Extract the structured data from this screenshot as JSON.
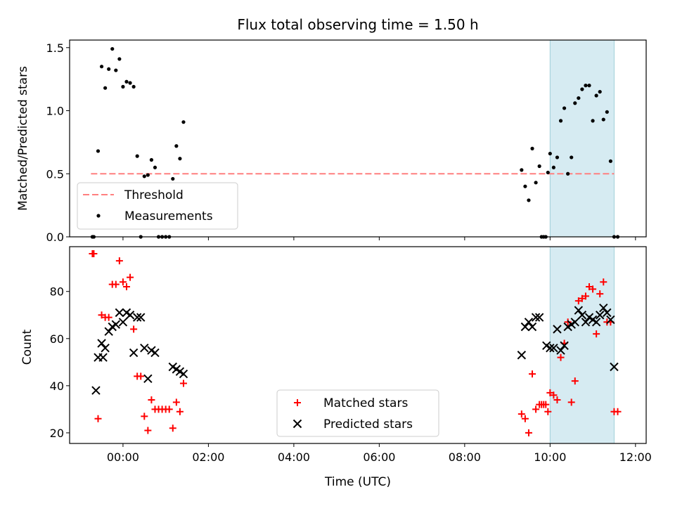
{
  "chart_data": [
    {
      "type": "scatter",
      "title": "Flux total observing time = 1.50 h",
      "ylabel": "Matched/Predicted stars",
      "xlabel": "",
      "xlim": [
        "-01:15",
        "12:15"
      ],
      "ylim": [
        0,
        1.56
      ],
      "yticks": [
        "0.0",
        "0.5",
        "1.0",
        "1.5"
      ],
      "shaded_interval": [
        "10:00",
        "11:30"
      ],
      "legend_position": "lower-left",
      "series": [
        {
          "name": "Threshold",
          "kind": "dashed-line",
          "color": "#ff7f7f",
          "x": [
            "-00:45",
            "11:30"
          ],
          "y": [
            0.5,
            0.5
          ]
        },
        {
          "name": "Measurements",
          "kind": "points",
          "color": "#000000",
          "x": [
            "-00:43",
            "-00:41",
            "-00:35",
            "-00:30",
            "-00:25",
            "-00:20",
            "-00:15",
            "-00:10",
            "-00:05",
            "00:00",
            "00:05",
            "00:10",
            "00:15",
            "00:20",
            "00:25",
            "00:30",
            "00:35",
            "00:40",
            "00:45",
            "00:50",
            "00:55",
            "01:00",
            "01:05",
            "01:10",
            "01:15",
            "01:20",
            "01:25",
            "09:20",
            "09:25",
            "09:30",
            "09:35",
            "09:40",
            "09:45",
            "09:48",
            "09:51",
            "09:54",
            "09:57",
            "10:00",
            "10:05",
            "10:10",
            "10:15",
            "10:20",
            "10:25",
            "10:30",
            "10:35",
            "10:40",
            "10:45",
            "10:50",
            "10:55",
            "11:00",
            "11:05",
            "11:10",
            "11:15",
            "11:20",
            "11:25",
            "11:30",
            "11:35"
          ],
          "y": [
            0.0,
            0.0,
            0.68,
            1.35,
            1.18,
            1.33,
            1.49,
            1.32,
            1.41,
            1.19,
            1.23,
            1.22,
            1.19,
            0.64,
            0.0,
            0.48,
            0.49,
            0.61,
            0.55,
            0.0,
            0.0,
            0.0,
            0.0,
            0.46,
            0.72,
            0.62,
            0.91,
            0.53,
            0.4,
            0.29,
            0.7,
            0.43,
            0.56,
            0.0,
            0.0,
            0.0,
            0.51,
            0.66,
            0.55,
            0.63,
            0.92,
            1.02,
            0.5,
            0.63,
            1.06,
            1.1,
            1.17,
            1.2,
            1.2,
            0.92,
            1.12,
            1.15,
            0.93,
            0.99,
            0.6,
            0.0,
            0.0
          ]
        }
      ]
    },
    {
      "type": "scatter",
      "title": "",
      "ylabel": "Count",
      "xlabel": "Time (UTC)",
      "xlim": [
        "-01:15",
        "12:15"
      ],
      "xticks": [
        "00:00",
        "02:00",
        "04:00",
        "06:00",
        "08:00",
        "10:00",
        "12:00"
      ],
      "ylim": [
        15.5,
        99
      ],
      "yticks": [
        "20",
        "40",
        "60",
        "80"
      ],
      "shaded_interval": [
        "10:00",
        "11:30"
      ],
      "legend_position": "lower-center",
      "series": [
        {
          "name": "Matched stars",
          "marker": "+",
          "color": "#ff0000",
          "x": [
            "-00:43",
            "-00:41",
            "-00:35",
            "-00:30",
            "-00:25",
            "-00:20",
            "-00:15",
            "-00:10",
            "-00:05",
            "00:00",
            "00:05",
            "00:10",
            "00:15",
            "00:20",
            "00:25",
            "00:30",
            "00:35",
            "00:40",
            "00:45",
            "00:50",
            "00:55",
            "01:00",
            "01:05",
            "01:10",
            "01:15",
            "01:20",
            "01:25",
            "09:20",
            "09:25",
            "09:30",
            "09:35",
            "09:40",
            "09:45",
            "09:48",
            "09:51",
            "09:54",
            "09:57",
            "10:00",
            "10:05",
            "10:10",
            "10:15",
            "10:20",
            "10:25",
            "10:30",
            "10:35",
            "10:40",
            "10:45",
            "10:50",
            "10:55",
            "11:00",
            "11:05",
            "11:10",
            "11:15",
            "11:20",
            "11:25",
            "11:30",
            "11:35"
          ],
          "y": [
            96,
            96,
            26,
            70,
            69,
            69,
            83,
            83,
            93,
            84,
            82,
            86,
            64,
            44,
            44,
            27,
            21,
            34,
            30,
            30,
            30,
            30,
            30,
            22,
            33,
            29,
            41,
            28,
            26,
            20,
            45,
            30,
            32,
            32,
            32,
            32,
            29,
            37,
            36,
            34,
            52,
            58,
            67,
            33,
            42,
            76,
            77,
            78,
            82,
            81,
            62,
            79,
            84,
            67,
            67,
            29,
            29
          ]
        },
        {
          "name": "Predicted stars",
          "marker": "x",
          "color": "#000000",
          "x": [
            "-00:38",
            "-00:35",
            "-00:30",
            "-00:28",
            "-00:25",
            "-00:20",
            "-00:15",
            "-00:10",
            "-00:05",
            "00:00",
            "00:05",
            "00:10",
            "00:15",
            "00:20",
            "00:25",
            "00:30",
            "00:35",
            "00:40",
            "00:45",
            "01:10",
            "01:15",
            "01:20",
            "01:25",
            "09:20",
            "09:25",
            "09:30",
            "09:35",
            "09:40",
            "09:45",
            "09:55",
            "10:00",
            "10:05",
            "10:10",
            "10:15",
            "10:20",
            "10:25",
            "10:30",
            "10:35",
            "10:40",
            "10:45",
            "10:50",
            "10:55",
            "11:00",
            "11:05",
            "11:10",
            "11:15",
            "11:20",
            "11:25",
            "11:30"
          ],
          "y": [
            38,
            52,
            58,
            52,
            56,
            63,
            65,
            66,
            71,
            67,
            71,
            70,
            54,
            69,
            69,
            56,
            43,
            55,
            54,
            48,
            47,
            46,
            45,
            53,
            65,
            67,
            65,
            69,
            69,
            57,
            56,
            56,
            64,
            55,
            57,
            65,
            66,
            67,
            72,
            70,
            67,
            69,
            68,
            67,
            70,
            73,
            71,
            68,
            48
          ]
        }
      ]
    }
  ]
}
